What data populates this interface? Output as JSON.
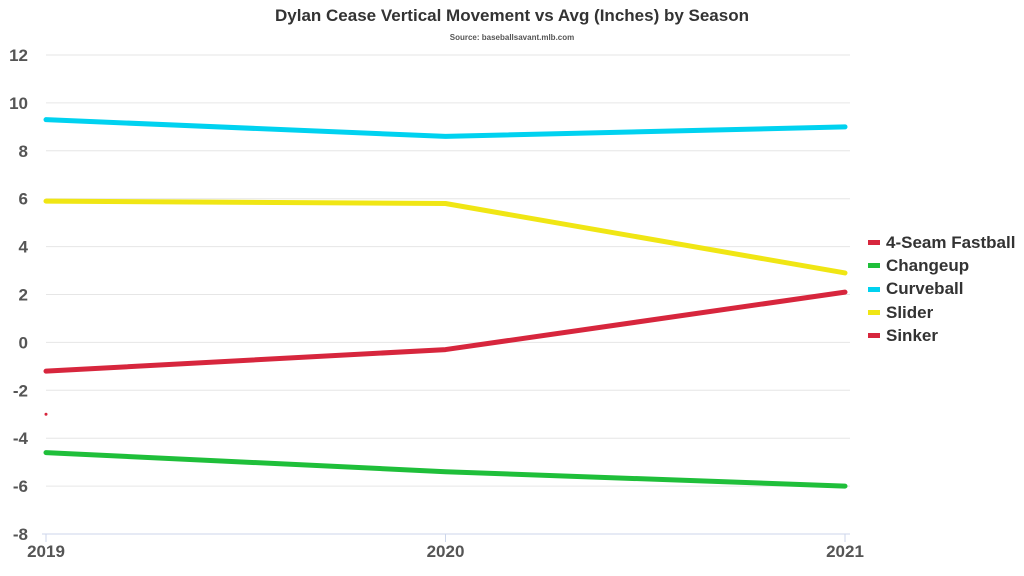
{
  "chart_data": {
    "type": "line",
    "title": "Dylan Cease Vertical Movement vs Avg (Inches) by Season",
    "subtitle": "Source: baseballsavant.mlb.com",
    "xlabel": "",
    "ylabel": "",
    "x": [
      "2019",
      "2020",
      "2021"
    ],
    "ylim": [
      -8,
      12
    ],
    "yticks": [
      "12",
      "10",
      "8",
      "6",
      "4",
      "2",
      "0",
      "-2",
      "-4",
      "-6",
      "-8"
    ],
    "grid": true,
    "legend_position": "right",
    "series": [
      {
        "name": "4-Seam Fastball",
        "color": "#d7263d",
        "values": [
          -1.2,
          -0.3,
          2.1
        ]
      },
      {
        "name": "Changeup",
        "color": "#1fbf3a",
        "values": [
          -4.6,
          -5.4,
          -6.0
        ]
      },
      {
        "name": "Curveball",
        "color": "#00d2f0",
        "values": [
          9.3,
          8.6,
          9.0
        ]
      },
      {
        "name": "Slider",
        "color": "#f0e614",
        "values": [
          5.9,
          5.8,
          2.9
        ]
      },
      {
        "name": "Sinker",
        "color": "#d7263d",
        "values": [
          -3.0,
          null,
          null
        ]
      }
    ]
  }
}
